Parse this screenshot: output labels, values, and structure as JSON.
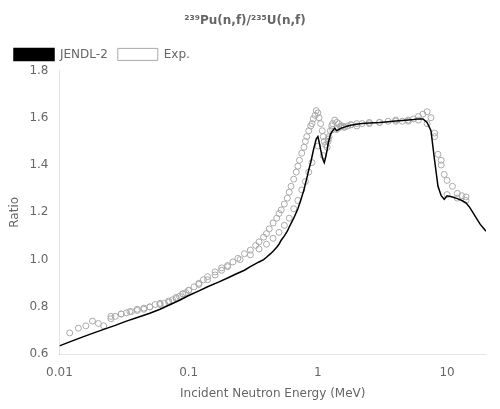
{
  "chart_data": {
    "type": "scatter",
    "title": "²³⁹Pu(n,f)/²³⁵U(n,f)",
    "xlabel": "Incident Neutron Energy (MeV)",
    "ylabel": "Ratio",
    "log": "x",
    "xlim": [
      0.01,
      20
    ],
    "xticks": [
      0.01,
      0.1,
      1,
      10
    ],
    "ylim": [
      0.6,
      1.8
    ],
    "yticks": [
      0.6,
      0.8,
      {
        "value": 1.0,
        "label": "1.0"
      },
      1.2,
      1.4,
      1.6,
      1.8
    ],
    "grid": false,
    "legend": "upper left",
    "series": [
      {
        "name": "JENDL-2",
        "type": "line",
        "color": "#000000",
        "line_style": "solid",
        "x": [
          0.01,
          0.012,
          0.015,
          0.018,
          0.022,
          0.027,
          0.033,
          0.04,
          0.05,
          0.06,
          0.07,
          0.085,
          0.1,
          0.12,
          0.14,
          0.17,
          0.2,
          0.23,
          0.27,
          0.3,
          0.35,
          0.38,
          0.4,
          0.43,
          0.45,
          0.48,
          0.5,
          0.52,
          0.55,
          0.58,
          0.6,
          0.65,
          0.7,
          0.73,
          0.75,
          0.78,
          0.8,
          0.83,
          0.85,
          0.88,
          0.9,
          0.92,
          0.95,
          0.97,
          1.0,
          1.02,
          1.05,
          1.08,
          1.1,
          1.12,
          1.15,
          1.18,
          1.2,
          1.25,
          1.3,
          1.35,
          1.4,
          1.5,
          1.6,
          1.7,
          1.8,
          2.0,
          2.2,
          2.5,
          3.0,
          3.5,
          4.0,
          4.5,
          5.0,
          5.5,
          6.0,
          6.5,
          7.0,
          7.5,
          8.0,
          8.5,
          9.0,
          9.5,
          10.0,
          11.0,
          12.0,
          13.0,
          14.0,
          15.0,
          18.0,
          20.0
        ],
        "values": [
          0.635,
          0.652,
          0.672,
          0.688,
          0.705,
          0.722,
          0.74,
          0.755,
          0.773,
          0.79,
          0.807,
          0.828,
          0.848,
          0.868,
          0.885,
          0.905,
          0.922,
          0.938,
          0.955,
          0.97,
          0.99,
          1.0,
          1.01,
          1.025,
          1.035,
          1.052,
          1.065,
          1.082,
          1.1,
          1.12,
          1.138,
          1.175,
          1.215,
          1.245,
          1.265,
          1.295,
          1.32,
          1.355,
          1.38,
          1.41,
          1.435,
          1.46,
          1.49,
          1.51,
          1.52,
          1.5,
          1.465,
          1.435,
          1.42,
          1.41,
          1.435,
          1.465,
          1.49,
          1.53,
          1.545,
          1.555,
          1.545,
          1.555,
          1.56,
          1.565,
          1.568,
          1.572,
          1.575,
          1.578,
          1.58,
          1.583,
          1.586,
          1.588,
          1.59,
          1.592,
          1.595,
          1.595,
          1.58,
          1.545,
          1.42,
          1.31,
          1.27,
          1.255,
          1.27,
          1.265,
          1.258,
          1.25,
          1.24,
          1.22,
          1.15,
          1.12
        ]
      },
      {
        "name": "Exp.",
        "type": "scatter",
        "color": "#aaaaaa",
        "marker": "open_circle",
        "x": [
          0.012,
          0.014,
          0.016,
          0.018,
          0.02,
          0.022,
          0.025,
          0.027,
          0.03,
          0.033,
          0.036,
          0.04,
          0.045,
          0.05,
          0.055,
          0.06,
          0.065,
          0.07,
          0.075,
          0.08,
          0.085,
          0.09,
          0.095,
          0.1,
          0.11,
          0.12,
          0.13,
          0.14,
          0.16,
          0.18,
          0.2,
          0.22,
          0.24,
          0.27,
          0.3,
          0.33,
          0.35,
          0.38,
          0.4,
          0.42,
          0.45,
          0.48,
          0.5,
          0.52,
          0.55,
          0.58,
          0.6,
          0.62,
          0.65,
          0.68,
          0.7,
          0.72,
          0.75,
          0.78,
          0.8,
          0.82,
          0.85,
          0.88,
          0.9,
          0.92,
          0.95,
          0.97,
          1.0,
          1.02,
          1.05,
          1.08,
          1.1,
          1.12,
          1.15,
          1.18,
          1.2,
          1.22,
          1.25,
          1.28,
          1.3,
          1.35,
          1.4,
          1.45,
          1.5,
          1.55,
          1.6,
          1.7,
          1.8,
          2.0,
          2.2,
          2.5,
          3.0,
          3.5,
          4.0,
          4.5,
          5.0,
          5.5,
          6.0,
          6.5,
          7.0,
          7.5,
          8.0,
          8.5,
          9.0,
          9.5,
          10.0,
          11.0,
          12.0,
          13.0,
          14.0,
          0.025,
          0.03,
          0.035,
          0.04,
          0.045,
          0.05,
          0.06,
          0.07,
          0.08,
          0.09,
          0.1,
          0.12,
          0.14,
          0.16,
          0.18,
          0.2,
          0.25,
          0.3,
          0.35,
          0.4,
          0.45,
          0.5,
          0.55,
          0.6,
          0.65,
          0.7,
          0.75,
          0.8,
          0.85,
          0.9,
          1.0,
          1.1,
          1.2,
          1.3,
          1.4,
          1.5,
          1.6,
          1.8,
          2.0,
          2.5,
          3.0,
          4.0,
          5.0,
          6.0,
          7.0,
          8.0,
          9.0,
          10.0,
          12.0,
          14.0
        ],
        "values": [
          0.69,
          0.71,
          0.72,
          0.74,
          0.73,
          0.72,
          0.75,
          0.76,
          0.77,
          0.775,
          0.78,
          0.785,
          0.79,
          0.8,
          0.81,
          0.81,
          0.815,
          0.82,
          0.83,
          0.835,
          0.845,
          0.855,
          0.86,
          0.87,
          0.885,
          0.9,
          0.915,
          0.928,
          0.948,
          0.965,
          0.975,
          0.99,
          1.005,
          1.025,
          1.04,
          1.06,
          1.075,
          1.095,
          1.11,
          1.13,
          1.155,
          1.175,
          1.195,
          1.21,
          1.235,
          1.26,
          1.285,
          1.31,
          1.34,
          1.37,
          1.395,
          1.42,
          1.45,
          1.475,
          1.5,
          1.52,
          1.545,
          1.565,
          1.575,
          1.595,
          1.61,
          1.63,
          1.62,
          1.6,
          1.575,
          1.545,
          1.52,
          1.5,
          1.485,
          1.475,
          1.5,
          1.52,
          1.545,
          1.565,
          1.575,
          1.59,
          1.58,
          1.575,
          1.565,
          1.565,
          1.56,
          1.565,
          1.57,
          1.565,
          1.575,
          1.575,
          1.58,
          1.585,
          1.59,
          1.585,
          1.59,
          1.595,
          1.605,
          1.615,
          1.625,
          1.6,
          1.535,
          1.445,
          1.4,
          1.36,
          1.335,
          1.31,
          1.28,
          1.27,
          1.265,
          0.76,
          0.77,
          0.78,
          0.79,
          0.795,
          0.8,
          0.815,
          0.825,
          0.84,
          0.855,
          0.87,
          0.895,
          0.915,
          0.935,
          0.955,
          0.97,
          1.0,
          1.02,
          1.045,
          1.065,
          1.09,
          1.115,
          1.145,
          1.175,
          1.215,
          1.25,
          1.295,
          1.33,
          1.37,
          1.41,
          1.48,
          1.44,
          1.51,
          1.55,
          1.55,
          1.56,
          1.56,
          1.57,
          1.575,
          1.58,
          1.58,
          1.585,
          1.585,
          1.59,
          1.575,
          1.52,
          1.42,
          1.275,
          1.26,
          1.25
        ]
      }
    ]
  }
}
